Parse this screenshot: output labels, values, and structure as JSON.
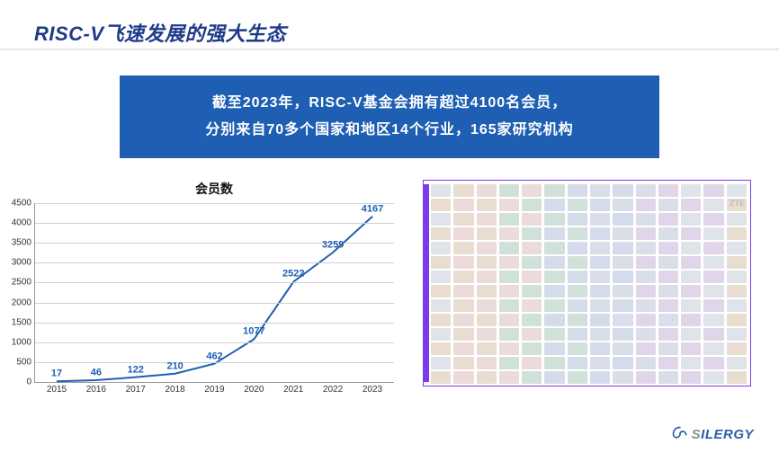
{
  "title": "RISC-V飞速发展的强大生态",
  "banner": {
    "line1": "截至2023年，RISC-V基金会拥有超过4100名会员，",
    "line2": "分别来自70多个国家和地区14个行业，165家研究机构",
    "bg_color": "#1e5fb3",
    "text_color": "#ffffff",
    "fontsize": 16
  },
  "chart": {
    "type": "line",
    "title": "会员数",
    "title_fontsize": 14,
    "categories": [
      "2015",
      "2016",
      "2017",
      "2018",
      "2019",
      "2020",
      "2021",
      "2022",
      "2023"
    ],
    "values": [
      17,
      46,
      122,
      210,
      462,
      1077,
      2522,
      3259,
      4167
    ],
    "ylim": [
      0,
      4500
    ],
    "ytick_step": 500,
    "line_color": "#1e5fb3",
    "line_width": 2,
    "label_color": "#1e5fb3",
    "label_fontsize": 11,
    "axis_color": "#999999",
    "grid_color": "#d0d0d0",
    "tick_font_color": "#333333",
    "tick_fontsize": 10,
    "background_color": "#ffffff"
  },
  "logo_panel": {
    "border_color": "#7c3aed",
    "sidebar_color": "#7c3aed",
    "placeholder_color": "#d7dde6",
    "highlight_text": "ZTE",
    "rows": 14,
    "cols": 14
  },
  "footer": {
    "brand_gray": "S",
    "brand_blue": "ILERGY",
    "icon_color": "#2b5fa8"
  },
  "colors": {
    "title_color": "#1e3a8a",
    "page_bg": "#ffffff",
    "underline": "#e5e7eb"
  }
}
